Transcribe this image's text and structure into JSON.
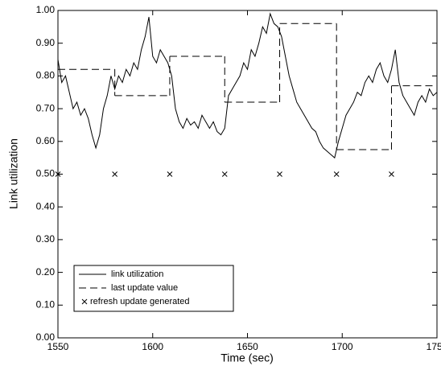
{
  "chart_data": {
    "type": "line",
    "x_label": "Time (sec)",
    "y_label": "Link utilization",
    "xlim": [
      1550,
      1750
    ],
    "ylim": [
      0,
      1
    ],
    "xticks": [
      1550,
      1600,
      1650,
      1700,
      1750
    ],
    "yticks": [
      {
        "value": 0,
        "label": "0.00"
      },
      {
        "value": 0.1,
        "label": "0.10"
      },
      {
        "value": 0.2,
        "label": "0.20"
      },
      {
        "value": 0.3,
        "label": "0.30"
      },
      {
        "value": 0.4,
        "label": "0.40"
      },
      {
        "value": 0.5,
        "label": "0.50"
      },
      {
        "value": 0.6,
        "label": "0.60"
      },
      {
        "value": 0.7,
        "label": "0.70"
      },
      {
        "value": 0.8,
        "label": "0.80"
      },
      {
        "value": 0.9,
        "label": "0.90"
      },
      {
        "value": 1,
        "label": "1.00"
      }
    ],
    "legend_position": "lower left",
    "series": [
      {
        "name": "link utilization",
        "color": "#000000",
        "style": "solid",
        "x": [
          1550,
          1552,
          1554,
          1556,
          1558,
          1560,
          1562,
          1564,
          1566,
          1568,
          1570,
          1572,
          1574,
          1576,
          1578,
          1580,
          1582,
          1584,
          1586,
          1588,
          1590,
          1592,
          1594,
          1596,
          1598,
          1600,
          1602,
          1604,
          1606,
          1608,
          1610,
          1612,
          1614,
          1616,
          1618,
          1620,
          1622,
          1624,
          1626,
          1628,
          1630,
          1632,
          1634,
          1636,
          1638,
          1640,
          1642,
          1644,
          1646,
          1648,
          1650,
          1652,
          1654,
          1656,
          1658,
          1660,
          1662,
          1664,
          1666,
          1668,
          1670,
          1672,
          1674,
          1676,
          1678,
          1680,
          1682,
          1684,
          1686,
          1688,
          1690,
          1692,
          1694,
          1696,
          1698,
          1700,
          1702,
          1704,
          1706,
          1708,
          1710,
          1712,
          1714,
          1716,
          1718,
          1720,
          1722,
          1724,
          1726,
          1728,
          1730,
          1732,
          1734,
          1736,
          1738,
          1740,
          1742,
          1744,
          1746,
          1748,
          1750
        ],
        "values": [
          0.85,
          0.78,
          0.8,
          0.75,
          0.7,
          0.72,
          0.68,
          0.7,
          0.67,
          0.62,
          0.58,
          0.62,
          0.7,
          0.74,
          0.8,
          0.76,
          0.8,
          0.78,
          0.82,
          0.8,
          0.84,
          0.82,
          0.88,
          0.92,
          0.98,
          0.86,
          0.84,
          0.88,
          0.86,
          0.84,
          0.8,
          0.7,
          0.66,
          0.64,
          0.67,
          0.65,
          0.66,
          0.64,
          0.68,
          0.66,
          0.64,
          0.66,
          0.63,
          0.62,
          0.64,
          0.74,
          0.76,
          0.78,
          0.8,
          0.84,
          0.82,
          0.88,
          0.86,
          0.9,
          0.95,
          0.93,
          0.99,
          0.96,
          0.95,
          0.92,
          0.86,
          0.8,
          0.76,
          0.72,
          0.7,
          0.68,
          0.66,
          0.64,
          0.63,
          0.6,
          0.58,
          0.57,
          0.56,
          0.55,
          0.6,
          0.64,
          0.68,
          0.7,
          0.72,
          0.75,
          0.74,
          0.78,
          0.8,
          0.78,
          0.82,
          0.84,
          0.8,
          0.78,
          0.82,
          0.88,
          0.78,
          0.74,
          0.72,
          0.7,
          0.68,
          0.72,
          0.74,
          0.72,
          0.76,
          0.74,
          0.75
        ]
      },
      {
        "name": "last update value",
        "color": "#000000",
        "style": "dashed",
        "step": true,
        "x": [
          1550,
          1580,
          1609,
          1638,
          1667,
          1697,
          1726
        ],
        "values": [
          0.82,
          0.74,
          0.86,
          0.72,
          0.96,
          0.575,
          0.77
        ]
      },
      {
        "name": "refresh update generated",
        "color": "#000000",
        "style": "none",
        "marker": "x",
        "x": [
          1550,
          1580,
          1609,
          1638,
          1667,
          1697,
          1726
        ],
        "values": [
          0.5,
          0.5,
          0.5,
          0.5,
          0.5,
          0.5,
          0.5
        ]
      }
    ]
  }
}
